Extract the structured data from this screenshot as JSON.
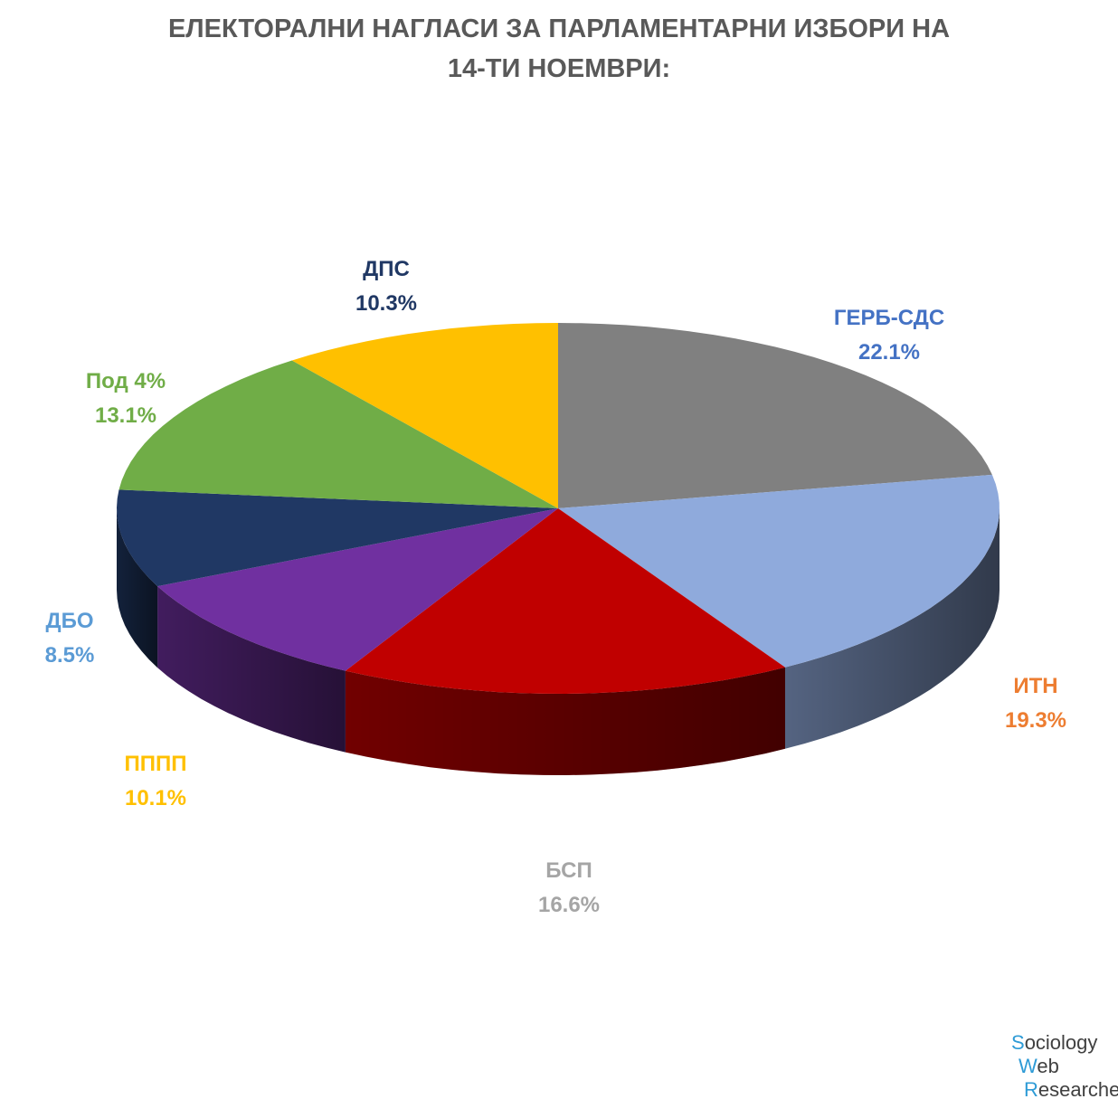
{
  "title_lines": [
    "ЕЛЕКТОРАЛНИ НАГЛАСИ ЗА ПАРЛАМЕНТАРНИ ИЗБОРИ НА",
    "14-ТИ НОЕМВРИ:"
  ],
  "chart_data": {
    "type": "pie",
    "title": "ЕЛЕКТОРАЛНИ НАГЛАСИ ЗА ПАРЛАМЕНТАРНИ ИЗБОРИ НА 14-ТИ НОЕМВРИ:",
    "slices": [
      {
        "label": "ГЕРБ-СДС",
        "value": 22.1,
        "value_text": "22.1%",
        "color": "#808080",
        "label_color": "#4472c4"
      },
      {
        "label": "ИТН",
        "value": 19.3,
        "value_text": "19.3%",
        "color": "#8faadc",
        "label_color": "#ed7d31"
      },
      {
        "label": "БСП",
        "value": 16.6,
        "value_text": "16.6%",
        "color": "#c00000",
        "label_color": "#a5a5a5"
      },
      {
        "label": "ПППП",
        "value": 10.1,
        "value_text": "10.1%",
        "color": "#7030a0",
        "label_color": "#ffc000"
      },
      {
        "label": "ДБО",
        "value": 8.5,
        "value_text": "8.5%",
        "color": "#203864",
        "label_color": "#5b9bd5"
      },
      {
        "label": "Под 4%",
        "value": 13.1,
        "value_text": "13.1%",
        "color": "#70ad47",
        "label_color": "#70ad47"
      },
      {
        "label": "ДПС",
        "value": 10.3,
        "value_text": "10.3%",
        "color": "#ffc000",
        "label_color": "#203864"
      }
    ]
  },
  "watermark": {
    "lines": [
      {
        "initial": "S",
        "rest": "ociology"
      },
      {
        "initial": "W",
        "rest": "eb"
      },
      {
        "initial": "R",
        "rest": "esearcher"
      }
    ]
  }
}
